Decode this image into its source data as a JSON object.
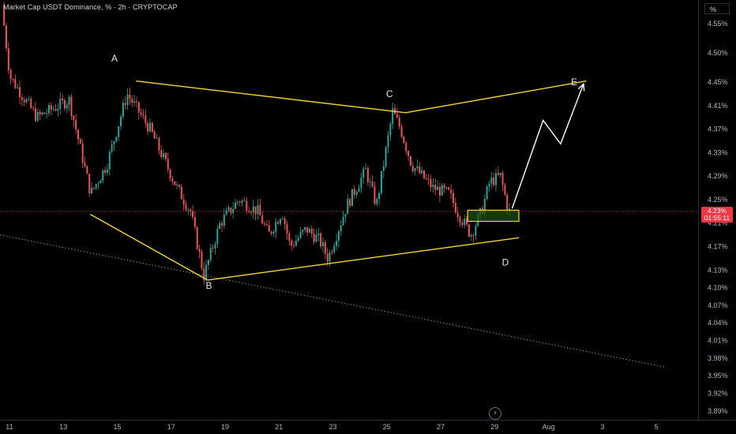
{
  "header": {
    "title": "Market Cap USDT Dominance, % · 2h · CRYPTOCAP"
  },
  "unit_button": "%",
  "price_tag": {
    "value": "4.23%",
    "countdown": "01:55:11"
  },
  "colors": {
    "background": "#000000",
    "bull": "#26a69a",
    "bear": "#ef5350",
    "pattern": "#f0d832",
    "path": "#ffffff",
    "zone_fill": "#1e4d22",
    "price_line": "#f23645"
  },
  "icons": {
    "replay": "lightning-icon"
  },
  "chart_data": {
    "type": "candlestick",
    "y_axis": {
      "unit": "%",
      "ticks": [
        4.55,
        4.5,
        4.45,
        4.41,
        4.37,
        4.33,
        4.29,
        4.25,
        4.21,
        4.17,
        4.13,
        4.1,
        4.07,
        4.04,
        4.01,
        3.98,
        3.95,
        3.92,
        3.89
      ],
      "tick_labels": [
        "4.55%",
        "4.50%",
        "4.45%",
        "4.41%",
        "4.37%",
        "4.33%",
        "4.29%",
        "4.25%",
        "4.21%",
        "4.17%",
        "4.13%",
        "4.10%",
        "4.07%",
        "4.04%",
        "4.01%",
        "3.98%",
        "3.95%",
        "3.92%",
        "3.89%"
      ],
      "range": [
        3.875,
        4.59
      ]
    },
    "x_axis": {
      "tick_labels": [
        "11",
        "13",
        "15",
        "17",
        "19",
        "21",
        "23",
        "25",
        "27",
        "29",
        "Aug",
        "3",
        "5"
      ],
      "tick_days": [
        11,
        13,
        15,
        17,
        19,
        21,
        23,
        25,
        27,
        29,
        31,
        33,
        35
      ],
      "range_days": [
        10.65,
        36.55
      ]
    },
    "last_price": 4.23,
    "anchors": [
      {
        "day": 10.8,
        "price": 4.58
      },
      {
        "day": 11.1,
        "price": 4.46
      },
      {
        "day": 12.1,
        "price": 4.39
      },
      {
        "day": 13.3,
        "price": 4.42
      },
      {
        "day": 14.1,
        "price": 4.26
      },
      {
        "day": 14.7,
        "price": 4.31
      },
      {
        "day": 15.45,
        "price": 4.43
      },
      {
        "day": 16.3,
        "price": 4.37
      },
      {
        "day": 17.3,
        "price": 4.27
      },
      {
        "day": 17.8,
        "price": 4.23
      },
      {
        "day": 18.3,
        "price": 4.12
      },
      {
        "day": 18.9,
        "price": 4.21
      },
      {
        "day": 19.6,
        "price": 4.25
      },
      {
        "day": 20.3,
        "price": 4.23
      },
      {
        "day": 20.7,
        "price": 4.19
      },
      {
        "day": 21.2,
        "price": 4.23
      },
      {
        "day": 21.5,
        "price": 4.17
      },
      {
        "day": 22.1,
        "price": 4.2
      },
      {
        "day": 22.6,
        "price": 4.18
      },
      {
        "day": 22.9,
        "price": 4.15
      },
      {
        "day": 23.6,
        "price": 4.24
      },
      {
        "day": 24.3,
        "price": 4.3
      },
      {
        "day": 24.7,
        "price": 4.24
      },
      {
        "day": 25.3,
        "price": 4.4
      },
      {
        "day": 25.6,
        "price": 4.37
      },
      {
        "day": 26.0,
        "price": 4.31
      },
      {
        "day": 26.8,
        "price": 4.27
      },
      {
        "day": 27.4,
        "price": 4.26
      },
      {
        "day": 27.7,
        "price": 4.23
      },
      {
        "day": 28.2,
        "price": 4.19
      },
      {
        "day": 28.6,
        "price": 4.23
      },
      {
        "day": 28.9,
        "price": 4.28
      },
      {
        "day": 29.3,
        "price": 4.29
      },
      {
        "day": 29.6,
        "price": 4.23
      }
    ],
    "pattern_lines": [
      {
        "from": {
          "day": 14.0,
          "price": 4.225
        },
        "to": {
          "day": 18.35,
          "price": 4.113
        }
      },
      {
        "from": {
          "day": 18.35,
          "price": 4.113
        },
        "to": {
          "day": 29.9,
          "price": 4.185
        }
      },
      {
        "from": {
          "day": 15.7,
          "price": 4.452
        },
        "to": {
          "day": 25.7,
          "price": 4.398
        }
      },
      {
        "from": {
          "day": 25.7,
          "price": 4.398
        },
        "to": {
          "day": 32.4,
          "price": 4.452
        }
      }
    ],
    "dotted_trendline": {
      "from": {
        "day": 10.65,
        "price": 4.19
      },
      "to": {
        "day": 35.3,
        "price": 3.965
      }
    },
    "projection_path": [
      {
        "day": 29.65,
        "price": 4.235
      },
      {
        "day": 30.8,
        "price": 4.385
      },
      {
        "day": 31.45,
        "price": 4.345
      },
      {
        "day": 32.3,
        "price": 4.447
      }
    ],
    "zone": {
      "day_start": 28.0,
      "day_end": 29.9,
      "price_low": 4.213,
      "price_high": 4.232
    },
    "wave_labels": [
      {
        "text": "A",
        "day": 14.9,
        "price": 4.485
      },
      {
        "text": "B",
        "day": 18.4,
        "price": 4.098
      },
      {
        "text": "C",
        "day": 25.1,
        "price": 4.425
      },
      {
        "text": "D",
        "day": 29.4,
        "price": 4.138
      },
      {
        "text": "E",
        "day": 31.95,
        "price": 4.445
      }
    ]
  }
}
